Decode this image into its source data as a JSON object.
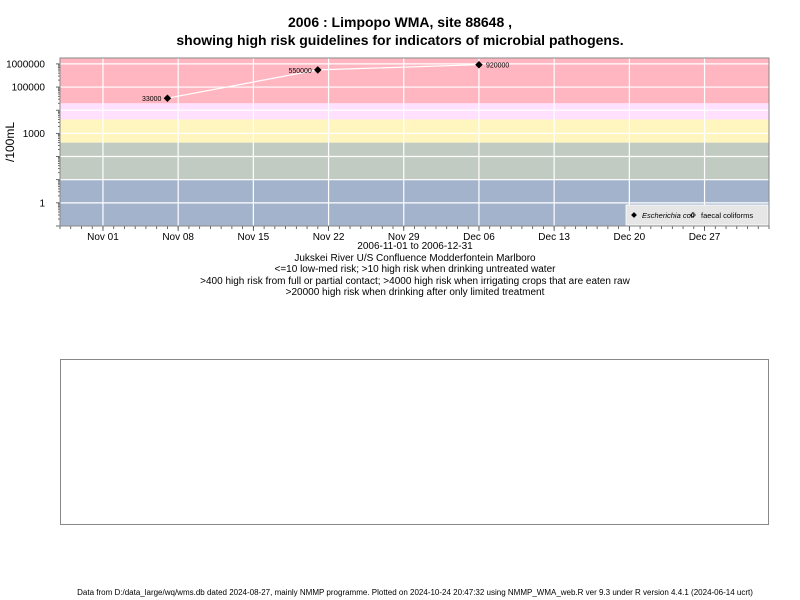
{
  "header": {
    "title_line1": "2006 : Limpopo WMA, site 88648 ,",
    "title_line2": "showing high risk guidelines for indicators of microbial pathogens."
  },
  "chart_data": {
    "type": "scatter",
    "title": "2006 : Limpopo WMA, site 88648 , showing high risk guidelines for indicators of microbial pathogens.",
    "ylabel": "/100mL",
    "xlabel": "",
    "y_scale": "log10",
    "ylim": [
      0.1,
      1800000
    ],
    "xlim": [
      "2006-10-28",
      "2007-01-02"
    ],
    "y_ticks": [
      {
        "value": 1,
        "label": "1"
      },
      {
        "value": 1000,
        "label": "1000"
      },
      {
        "value": 100000,
        "label": "100000"
      },
      {
        "value": 1000000,
        "label": "1000000"
      }
    ],
    "x_ticks": [
      {
        "date": "2006-11-01",
        "label": "Nov 01"
      },
      {
        "date": "2006-11-08",
        "label": "Nov 08"
      },
      {
        "date": "2006-11-15",
        "label": "Nov 15"
      },
      {
        "date": "2006-11-22",
        "label": "Nov 22"
      },
      {
        "date": "2006-11-29",
        "label": "Nov 29"
      },
      {
        "date": "2006-12-06",
        "label": "Dec 06"
      },
      {
        "date": "2006-12-13",
        "label": "Dec 13"
      },
      {
        "date": "2006-12-20",
        "label": "Dec 20"
      },
      {
        "date": "2006-12-27",
        "label": "Dec 27"
      }
    ],
    "risk_bands": [
      {
        "lower": 0.1,
        "upper": 10,
        "color": "#a3b3cc"
      },
      {
        "lower": 10,
        "upper": 400,
        "color": "#c2cbc1"
      },
      {
        "lower": 400,
        "upper": 4000,
        "color": "#fff6bf"
      },
      {
        "lower": 4000,
        "upper": 20000,
        "color": "#ffe1ff"
      },
      {
        "lower": 20000,
        "upper": 1800000,
        "color": "#ffb6c1"
      }
    ],
    "grid": true,
    "legend_position": "bottom-right",
    "series": [
      {
        "name": "Escherichia coli",
        "marker": "filled-diamond",
        "color": "#000000",
        "line_color": "#ffffff",
        "points": [
          {
            "x": "2006-11-07",
            "y": 33000,
            "label": "33000"
          },
          {
            "x": "2006-11-21",
            "y": 550000,
            "label": "550000"
          },
          {
            "x": "2006-12-06",
            "y": 920000,
            "label": "920000"
          }
        ]
      },
      {
        "name": "faecal coliforms",
        "marker": "open-diamond",
        "color": "#000000",
        "points": []
      }
    ]
  },
  "captions": {
    "date_range": "2006-11-01 to 2006-12-31",
    "site_name": "Jukskei River U/S Confluence Modderfontein Marlboro",
    "line_low": "<=10 low-med risk; >10 high risk when drinking untreated water",
    "line_mid": ">400 high risk from full or partial contact; >4000 high risk when irrigating crops that are eaten raw",
    "line_high": ">20000 high risk when drinking after only limited treatment"
  },
  "footer": {
    "text": "Data from D:/data_large/wq/wms.db dated 2024-08-27, mainly NMMP programme. Plotted on 2024-10-24 20:47:32 using NMMP_WMA_web.R ver 9.3 under R version 4.4.1 (2024-06-14 ucrt)"
  }
}
